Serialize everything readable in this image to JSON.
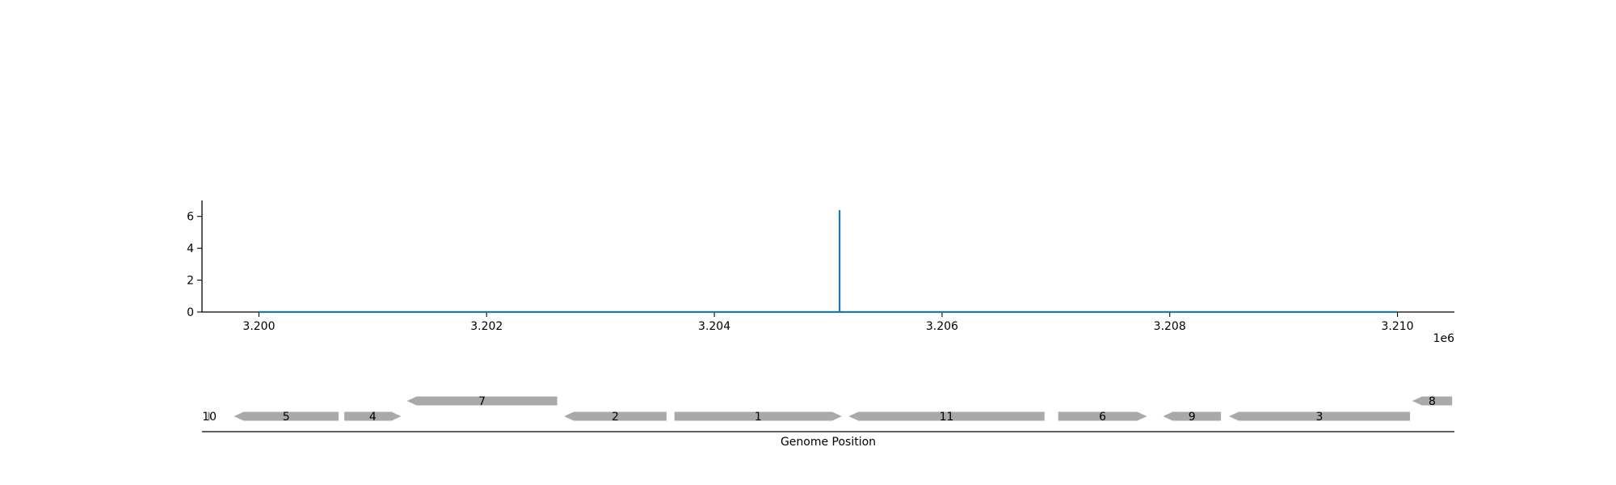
{
  "chart_data": [
    {
      "type": "line",
      "xlim": [
        3199500,
        3210500
      ],
      "ylim": [
        0,
        7
      ],
      "x_ticks": [
        3200000,
        3202000,
        3204000,
        3206000,
        3208000,
        3210000
      ],
      "x_tick_labels": [
        "3.200",
        "3.202",
        "3.204",
        "3.206",
        "3.208",
        "3.210"
      ],
      "x_offset_label": "1e6",
      "y_ticks": [
        0,
        2,
        4,
        6
      ],
      "y_tick_labels": [
        "0",
        "2",
        "4",
        "6"
      ],
      "grid": false,
      "series": [
        {
          "color": "#1f77b4",
          "x": [
            3200000,
            3205100,
            3205100,
            3205100,
            3210000
          ],
          "y": [
            0,
            0,
            6.4,
            0,
            0
          ]
        }
      ]
    },
    {
      "type": "gene-map",
      "xlim": [
        3199500,
        3210500
      ],
      "xlabel": "Genome Position",
      "feature_color": "#a9a9a9",
      "features": [
        {
          "label": "10",
          "start": 3199550,
          "end": 3199580,
          "strand": 1,
          "row": 0
        },
        {
          "label": "5",
          "start": 3199780,
          "end": 3200700,
          "strand": -1,
          "row": 0
        },
        {
          "label": "4",
          "start": 3200750,
          "end": 3201250,
          "strand": 1,
          "row": 0
        },
        {
          "label": "7",
          "start": 3201300,
          "end": 3202620,
          "strand": -1,
          "row": 1
        },
        {
          "label": "2",
          "start": 3202680,
          "end": 3203580,
          "strand": -1,
          "row": 0
        },
        {
          "label": "1",
          "start": 3203650,
          "end": 3205120,
          "strand": 1,
          "row": 0
        },
        {
          "label": "11",
          "start": 3205180,
          "end": 3206900,
          "strand": -1,
          "row": 0
        },
        {
          "label": "6",
          "start": 3207020,
          "end": 3207800,
          "strand": 1,
          "row": 0
        },
        {
          "label": "9",
          "start": 3207940,
          "end": 3208450,
          "strand": -1,
          "row": 0
        },
        {
          "label": "3",
          "start": 3208520,
          "end": 3210110,
          "strand": -1,
          "row": 0
        },
        {
          "label": "8",
          "start": 3210130,
          "end": 3210480,
          "strand": -1,
          "row": 1
        }
      ]
    }
  ]
}
